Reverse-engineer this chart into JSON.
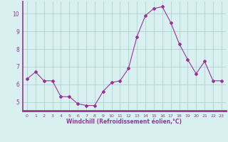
{
  "x": [
    0,
    1,
    2,
    3,
    4,
    5,
    6,
    7,
    8,
    9,
    10,
    11,
    12,
    13,
    14,
    15,
    16,
    17,
    18,
    19,
    20,
    21,
    22,
    23
  ],
  "y": [
    6.3,
    6.7,
    6.2,
    6.2,
    5.3,
    5.3,
    4.9,
    4.8,
    4.8,
    5.6,
    6.1,
    6.2,
    6.9,
    8.7,
    9.9,
    10.3,
    10.4,
    9.5,
    8.3,
    7.4,
    6.6,
    7.3,
    6.2,
    6.2
  ],
  "line_color": "#993399",
  "marker": "D",
  "marker_size": 2,
  "bg_color": "#d8f0f0",
  "grid_color": "#aacccc",
  "xlabel": "Windchill (Refroidissement éolien,°C)",
  "xlabel_color": "#993399",
  "tick_color": "#993399",
  "ylim": [
    4.5,
    10.7
  ],
  "yticks": [
    5,
    6,
    7,
    8,
    9,
    10
  ],
  "xticks": [
    0,
    1,
    2,
    3,
    4,
    5,
    6,
    7,
    8,
    9,
    10,
    11,
    12,
    13,
    14,
    15,
    16,
    17,
    18,
    19,
    20,
    21,
    22,
    23
  ],
  "spine_color": "#993399",
  "axis_bg": "#cc99cc"
}
